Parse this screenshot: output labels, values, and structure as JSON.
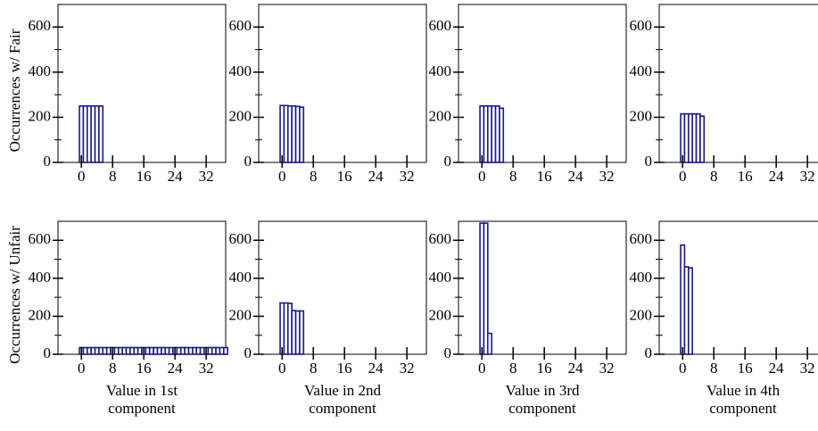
{
  "chart_data": [
    {
      "type": "bar",
      "ylabel": "Occurrences w/ Fair",
      "x": [
        0,
        1,
        2,
        3,
        4,
        5
      ],
      "values": [
        250,
        250,
        250,
        250,
        250,
        250
      ],
      "color": "#1a1a80",
      "xlim": [
        -6,
        37
      ],
      "ylim": [
        0,
        700
      ],
      "xticks": [
        0,
        8,
        16,
        24,
        32
      ],
      "yticks": [
        0,
        200,
        400,
        600
      ],
      "yminor": [
        100,
        300,
        500
      ]
    },
    {
      "type": "bar",
      "x": [
        0,
        1,
        2,
        3,
        4,
        5
      ],
      "values": [
        252,
        252,
        250,
        250,
        248,
        245
      ],
      "color": "#1a1a80",
      "xlim": [
        -6,
        37
      ],
      "ylim": [
        0,
        700
      ],
      "xticks": [
        0,
        8,
        16,
        24,
        32
      ],
      "yticks": [
        0,
        200,
        400,
        600
      ],
      "yminor": [
        100,
        300,
        500
      ]
    },
    {
      "type": "bar",
      "x": [
        0,
        1,
        2,
        3,
        4,
        5
      ],
      "values": [
        250,
        250,
        250,
        250,
        250,
        240
      ],
      "color": "#1a1a80",
      "xlim": [
        -6,
        37
      ],
      "ylim": [
        0,
        700
      ],
      "xticks": [
        0,
        8,
        16,
        24,
        32
      ],
      "yticks": [
        0,
        200,
        400,
        600
      ],
      "yminor": [
        100,
        300,
        500
      ]
    },
    {
      "type": "bar",
      "x": [
        0,
        1,
        2,
        3,
        4,
        5
      ],
      "values": [
        215,
        215,
        215,
        215,
        215,
        205
      ],
      "color": "#1a1a80",
      "xlim": [
        -6,
        37
      ],
      "ylim": [
        0,
        700
      ],
      "xticks": [
        0,
        8,
        16,
        24,
        32
      ],
      "yticks": [
        0,
        200,
        400,
        600
      ],
      "yminor": [
        100,
        300,
        500
      ]
    },
    {
      "type": "bar",
      "ylabel": "Occurrences w/ Unfair",
      "xlabel": [
        "Value in 1st",
        "component"
      ],
      "x": [
        0,
        1,
        2,
        3,
        4,
        5,
        6,
        7,
        8,
        9,
        10,
        11,
        12,
        13,
        14,
        15,
        16,
        17,
        18,
        19,
        20,
        21,
        22,
        23,
        24,
        25,
        26,
        27,
        28,
        29,
        30,
        31,
        32,
        33,
        34,
        35,
        36,
        37
      ],
      "values": [
        35,
        35,
        35,
        35,
        35,
        35,
        35,
        35,
        35,
        35,
        35,
        35,
        35,
        35,
        35,
        35,
        35,
        35,
        35,
        35,
        35,
        35,
        35,
        35,
        35,
        35,
        35,
        35,
        35,
        35,
        35,
        35,
        35,
        35,
        35,
        35,
        35,
        35
      ],
      "color": "#1a1a80",
      "xlim": [
        -6,
        37
      ],
      "ylim": [
        0,
        700
      ],
      "xticks": [
        0,
        8,
        16,
        24,
        32
      ],
      "yticks": [
        0,
        200,
        400,
        600
      ],
      "yminor": [
        100,
        300,
        500
      ]
    },
    {
      "type": "bar",
      "xlabel": [
        "Value in 2nd",
        "component"
      ],
      "x": [
        0,
        1,
        2,
        3,
        4,
        5
      ],
      "values": [
        270,
        270,
        268,
        230,
        228,
        228
      ],
      "color": "#1a1a80",
      "xlim": [
        -6,
        37
      ],
      "ylim": [
        0,
        700
      ],
      "xticks": [
        0,
        8,
        16,
        24,
        32
      ],
      "yticks": [
        0,
        200,
        400,
        600
      ],
      "yminor": [
        100,
        300,
        500
      ]
    },
    {
      "type": "bar",
      "xlabel": [
        "Value in 3rd",
        "component"
      ],
      "x": [
        0,
        1,
        2
      ],
      "values": [
        690,
        690,
        110
      ],
      "color": "#1a1a80",
      "xlim": [
        -6,
        37
      ],
      "ylim": [
        0,
        700
      ],
      "xticks": [
        0,
        8,
        16,
        24,
        32
      ],
      "yticks": [
        0,
        200,
        400,
        600
      ],
      "yminor": [
        100,
        300,
        500
      ]
    },
    {
      "type": "bar",
      "xlabel": [
        "Value in 4th",
        "component"
      ],
      "x": [
        0,
        1,
        2
      ],
      "values": [
        575,
        460,
        455
      ],
      "color": "#1a1a80",
      "xlim": [
        -6,
        37
      ],
      "ylim": [
        0,
        700
      ],
      "xticks": [
        0,
        8,
        16,
        24,
        32
      ],
      "yticks": [
        0,
        200,
        400,
        600
      ],
      "yminor": [
        100,
        300,
        500
      ]
    }
  ]
}
